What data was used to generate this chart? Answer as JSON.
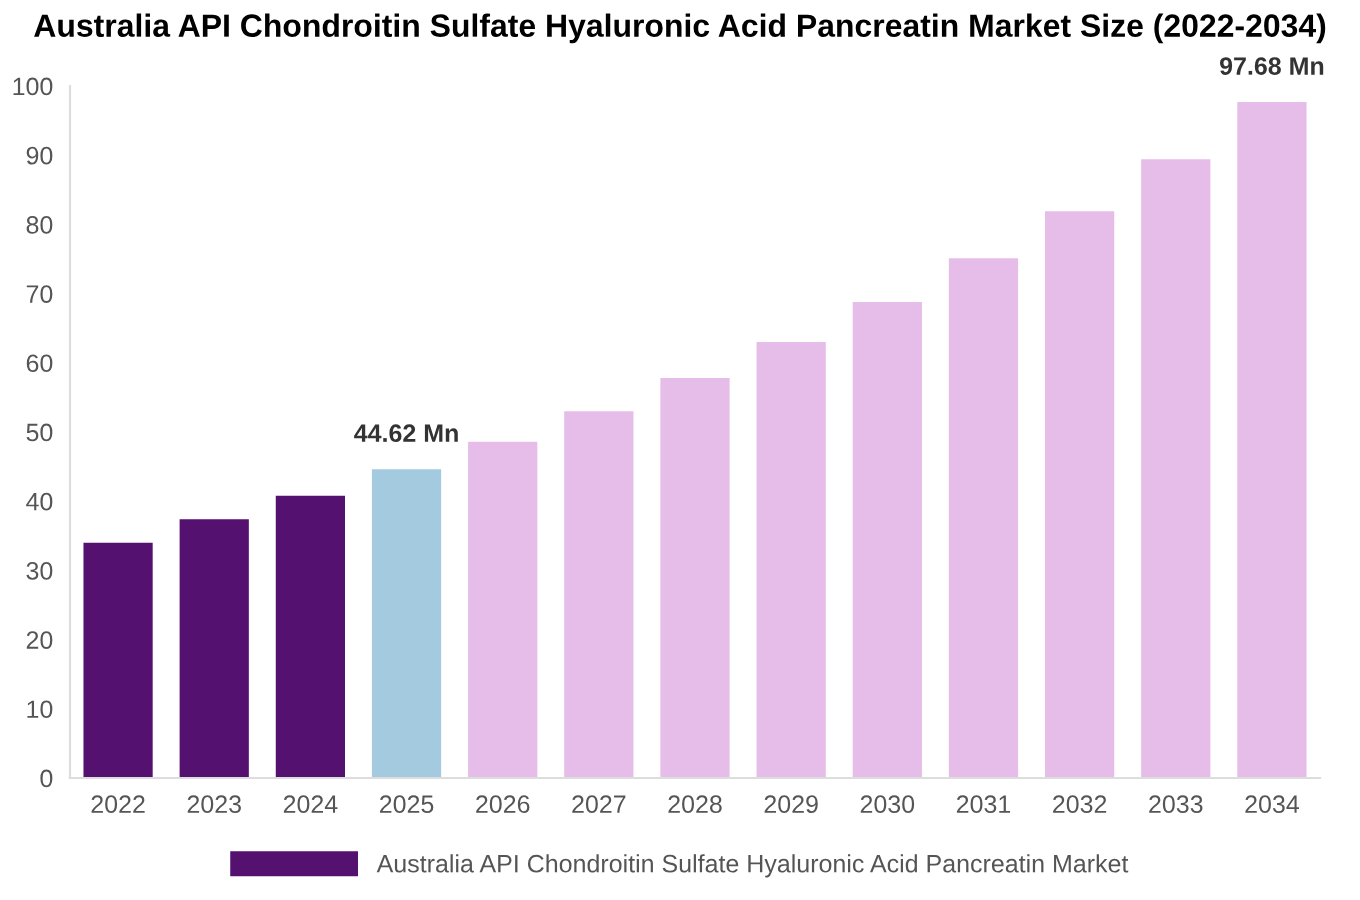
{
  "chart_data": {
    "type": "bar",
    "title": "Australia API Chondroitin Sulfate Hyaluronic Acid Pancreatin Market Size (2022-2034)",
    "categories": [
      "2022",
      "2023",
      "2024",
      "2025",
      "2026",
      "2027",
      "2028",
      "2029",
      "2030",
      "2031",
      "2032",
      "2033",
      "2034"
    ],
    "series": [
      {
        "name": "Australia API Chondroitin Sulfate Hyaluronic Acid Pancreatin Market",
        "color": "#541170",
        "colors": [
          "#541170",
          "#541170",
          "#541170",
          "#a3cadf",
          "#e6bce8",
          "#e6bce8",
          "#e6bce8",
          "#e6bce8",
          "#e6bce8",
          "#e6bce8",
          "#e6bce8",
          "#e6bce8",
          "#e6bce8"
        ],
        "values": [
          34.0,
          37.4,
          40.8,
          44.62,
          48.6,
          53.0,
          57.8,
          63.0,
          68.8,
          75.1,
          81.9,
          89.4,
          97.68
        ],
        "value_labels": [
          null,
          null,
          null,
          "44.62 Mn",
          null,
          null,
          null,
          null,
          null,
          null,
          null,
          null,
          "97.68 Mn"
        ]
      }
    ],
    "ylim": [
      0,
      100
    ],
    "yticks": [
      0,
      10,
      20,
      30,
      40,
      50,
      60,
      70,
      80,
      90,
      100
    ],
    "grid": false,
    "legend": "bottom"
  }
}
